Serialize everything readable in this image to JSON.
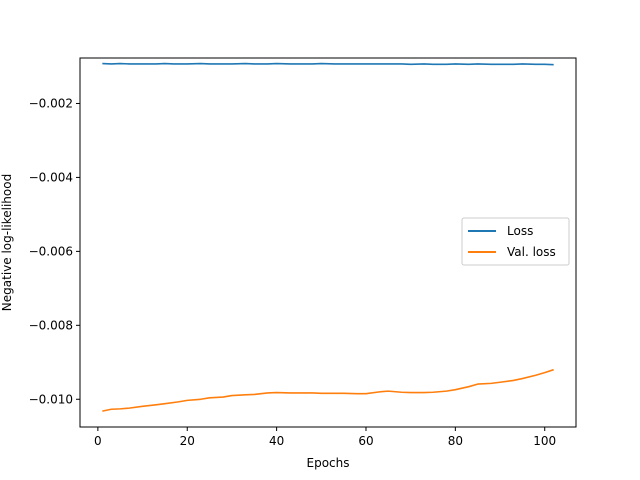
{
  "chart_data": {
    "type": "line",
    "title": "",
    "xlabel": "Epochs",
    "ylabel": "Negative log-likelihood",
    "xlim": [
      -4,
      107
    ],
    "ylim": [
      -0.01075,
      -0.00077
    ],
    "xticks": [
      0,
      20,
      40,
      60,
      80,
      100
    ],
    "xtick_labels": [
      "0",
      "20",
      "40",
      "60",
      "80",
      "100"
    ],
    "yticks": [
      -0.002,
      -0.004,
      -0.006,
      -0.008,
      -0.01
    ],
    "ytick_labels": [
      "−0.002",
      "−0.004",
      "−0.006",
      "−0.008",
      "−0.010"
    ],
    "grid": false,
    "legend_position": "center-right",
    "series": [
      {
        "name": "Loss",
        "color": "#1f77b4",
        "x": [
          1,
          3,
          5,
          7,
          10,
          13,
          15,
          17,
          20,
          23,
          25,
          28,
          30,
          33,
          35,
          38,
          40,
          43,
          45,
          48,
          50,
          53,
          55,
          58,
          60,
          63,
          65,
          68,
          70,
          73,
          75,
          78,
          80,
          83,
          85,
          88,
          90,
          93,
          95,
          98,
          100,
          102
        ],
        "y": [
          -0.00092,
          -0.00093,
          -0.00092,
          -0.00093,
          -0.00093,
          -0.00093,
          -0.00092,
          -0.00093,
          -0.00093,
          -0.00092,
          -0.00093,
          -0.00093,
          -0.00093,
          -0.00092,
          -0.00093,
          -0.00093,
          -0.00092,
          -0.00093,
          -0.00093,
          -0.00093,
          -0.00092,
          -0.00093,
          -0.00093,
          -0.00093,
          -0.00093,
          -0.00093,
          -0.00093,
          -0.00093,
          -0.00094,
          -0.00093,
          -0.00094,
          -0.00094,
          -0.00093,
          -0.00094,
          -0.00093,
          -0.00094,
          -0.00094,
          -0.00094,
          -0.00093,
          -0.00094,
          -0.00094,
          -0.00095
        ]
      },
      {
        "name": "Val. loss",
        "color": "#ff7f0e",
        "x": [
          1,
          3,
          5,
          7,
          10,
          13,
          15,
          18,
          20,
          23,
          25,
          28,
          30,
          33,
          35,
          38,
          40,
          43,
          45,
          48,
          50,
          53,
          55,
          58,
          60,
          63,
          65,
          68,
          70,
          73,
          75,
          78,
          80,
          83,
          85,
          88,
          90,
          93,
          95,
          98,
          100,
          102
        ],
        "y": [
          -0.01032,
          -0.01027,
          -0.01026,
          -0.01024,
          -0.01019,
          -0.01015,
          -0.01012,
          -0.01007,
          -0.01003,
          -0.01,
          -0.00996,
          -0.00994,
          -0.0099,
          -0.00988,
          -0.00987,
          -0.00983,
          -0.00982,
          -0.00983,
          -0.00983,
          -0.00983,
          -0.00984,
          -0.00984,
          -0.00984,
          -0.00985,
          -0.00985,
          -0.0098,
          -0.00978,
          -0.00981,
          -0.00982,
          -0.00982,
          -0.00981,
          -0.00978,
          -0.00974,
          -0.00966,
          -0.00959,
          -0.00957,
          -0.00954,
          -0.00949,
          -0.00944,
          -0.00935,
          -0.00928,
          -0.0092
        ]
      }
    ]
  }
}
